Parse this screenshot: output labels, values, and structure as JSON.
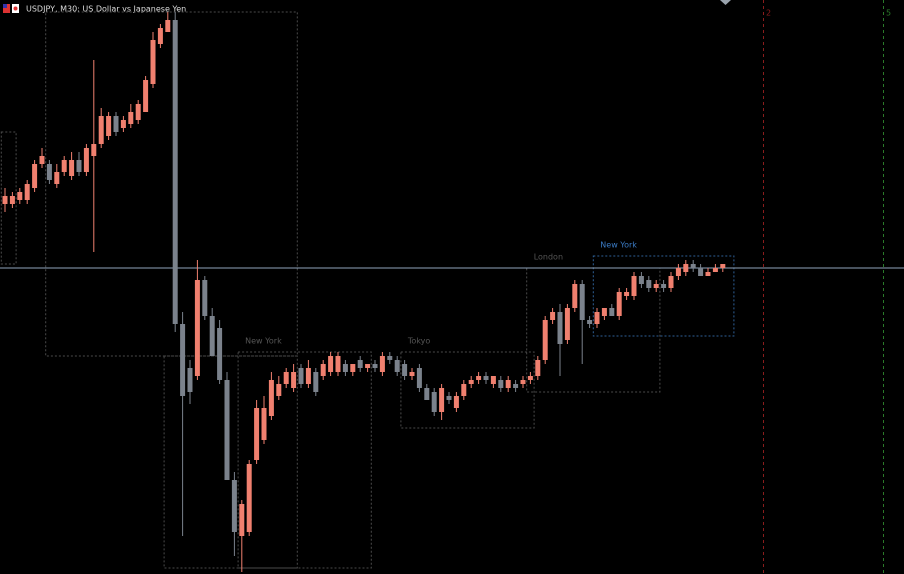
{
  "chart_data": {
    "type": "candlestick",
    "title": "USDJPY, M30:  US Dollar vs Japanese Yen",
    "ylim": [
      149.365,
      150.8
    ],
    "up_color": "#f0806f",
    "down_color": "#7b828c",
    "hline": 150.13,
    "hline_color": "#8fa4bd",
    "open": [
      150.29,
      150.29,
      150.3,
      150.3,
      150.33,
      150.39,
      150.39,
      150.34,
      150.37,
      150.36,
      150.4,
      150.37,
      150.41,
      150.44,
      150.46,
      150.51,
      150.48,
      150.49,
      150.5,
      150.52,
      150.59,
      150.69,
      150.72,
      150.75,
      149.99,
      149.88,
      149.86,
      150.1,
      150.01,
      149.98,
      149.85,
      149.6,
      149.46,
      149.47,
      149.65,
      149.7,
      149.76,
      149.81,
      149.84,
      149.83,
      149.88,
      149.84,
      149.87,
      149.86,
      149.87,
      149.87,
      149.89,
      149.87,
      149.9,
      149.88,
      149.89,
      149.87,
      149.91,
      149.9,
      149.89,
      149.86,
      149.88,
      149.83,
      149.82,
      149.77,
      149.81,
      149.78,
      149.81,
      149.84,
      149.85,
      149.86,
      149.84,
      149.85,
      149.83,
      149.84,
      149.84,
      149.85,
      149.86,
      149.9,
      150.0,
      150.02,
      149.95,
      150.03,
      150.09,
      150.0,
      149.99,
      150.01,
      150.03,
      150.01,
      150.06,
      150.06,
      150.11,
      150.1,
      150.08,
      150.09,
      150.08,
      150.11,
      150.12,
      150.14,
      150.13,
      150.11,
      150.12,
      150.13
    ],
    "high": [
      150.33,
      150.32,
      150.33,
      150.35,
      150.4,
      150.43,
      150.4,
      150.39,
      150.41,
      150.42,
      150.42,
      150.44,
      150.65,
      150.53,
      150.52,
      150.52,
      150.51,
      150.54,
      150.55,
      150.61,
      150.72,
      150.74,
      150.77,
      150.77,
      150.02,
      149.9,
      150.15,
      150.11,
      150.03,
      150.0,
      149.87,
      149.62,
      149.55,
      149.65,
      149.8,
      149.81,
      149.87,
      149.86,
      149.88,
      149.89,
      149.89,
      149.9,
      149.88,
      149.9,
      149.92,
      149.92,
      149.9,
      149.89,
      149.91,
      149.89,
      149.9,
      149.92,
      149.92,
      149.91,
      149.9,
      149.88,
      149.89,
      149.84,
      149.83,
      149.84,
      149.82,
      149.82,
      149.85,
      149.86,
      149.87,
      149.87,
      149.86,
      149.86,
      149.86,
      149.85,
      149.86,
      149.87,
      149.91,
      150.01,
      150.03,
      150.04,
      150.04,
      150.1,
      150.1,
      150.01,
      150.03,
      150.03,
      150.04,
      150.08,
      150.08,
      150.12,
      150.12,
      150.11,
      150.1,
      150.1,
      150.12,
      150.14,
      150.15,
      150.15,
      150.14,
      150.13,
      150.14,
      150.14
    ],
    "low": [
      150.27,
      150.28,
      150.29,
      150.29,
      150.32,
      150.38,
      150.34,
      150.33,
      150.36,
      150.35,
      150.36,
      150.36,
      150.17,
      150.43,
      150.45,
      150.46,
      150.47,
      150.48,
      150.49,
      150.52,
      150.58,
      150.68,
      150.72,
      149.97,
      149.46,
      149.79,
      149.85,
      150.0,
      149.91,
      149.84,
      149.6,
      149.41,
      149.37,
      149.46,
      149.64,
      149.69,
      149.75,
      149.8,
      149.83,
      149.82,
      149.83,
      149.83,
      149.81,
      149.85,
      149.86,
      149.86,
      149.86,
      149.86,
      149.87,
      149.87,
      149.87,
      149.86,
      149.89,
      149.86,
      149.85,
      149.85,
      149.82,
      149.8,
      149.76,
      149.75,
      149.79,
      149.77,
      149.8,
      149.83,
      149.84,
      149.84,
      149.83,
      149.82,
      149.82,
      149.82,
      149.83,
      149.84,
      149.85,
      149.89,
      149.99,
      149.86,
      149.94,
      150.02,
      149.89,
      149.98,
      149.98,
      150.0,
      150.01,
      150.0,
      150.05,
      150.05,
      150.08,
      150.07,
      150.07,
      150.07,
      150.07,
      150.1,
      150.11,
      150.12,
      150.11,
      150.11,
      150.12,
      150.12
    ],
    "close": [
      150.31,
      150.31,
      150.32,
      150.34,
      150.39,
      150.41,
      150.35,
      150.37,
      150.4,
      150.4,
      150.37,
      150.43,
      150.44,
      150.51,
      150.51,
      150.47,
      150.5,
      150.52,
      150.54,
      150.6,
      150.7,
      150.73,
      150.75,
      149.99,
      149.81,
      149.82,
      150.1,
      150.01,
      149.91,
      149.85,
      149.6,
      149.47,
      149.54,
      149.64,
      149.78,
      149.78,
      149.85,
      149.84,
      149.87,
      149.87,
      149.84,
      149.88,
      149.82,
      149.89,
      149.91,
      149.91,
      149.87,
      149.89,
      149.88,
      149.89,
      149.88,
      149.91,
      149.9,
      149.87,
      149.86,
      149.87,
      149.83,
      149.8,
      149.77,
      149.83,
      149.8,
      149.81,
      149.84,
      149.85,
      149.86,
      149.85,
      149.86,
      149.83,
      149.85,
      149.83,
      149.85,
      149.86,
      149.9,
      150.0,
      150.02,
      149.94,
      150.03,
      150.09,
      150.0,
      149.99,
      150.02,
      150.03,
      150.01,
      150.07,
      150.07,
      150.11,
      150.09,
      150.08,
      150.09,
      150.08,
      150.11,
      150.13,
      150.14,
      150.13,
      150.11,
      150.12,
      150.13,
      150.14
    ],
    "sessions": [
      {
        "start": 0,
        "end": 1,
        "high": 150.47,
        "low": 150.14,
        "color": "#4a4a4a"
      },
      {
        "start": 6,
        "end": 39,
        "high": 150.77,
        "low": 149.91,
        "color": "#4a4a4a"
      },
      {
        "start": 22,
        "end": 39,
        "high": 149.91,
        "low": 149.38,
        "color": "#4a4a4a"
      },
      {
        "label": "New York",
        "start": 32,
        "end": 49,
        "high": 149.92,
        "low": 149.38,
        "color": "#4a4a4a"
      },
      {
        "label": "Tokyo",
        "start": 54,
        "end": 71,
        "high": 149.92,
        "low": 149.73,
        "color": "#4a4a4a"
      },
      {
        "label": "London",
        "start": 71,
        "end": 88,
        "high": 150.13,
        "low": 149.82,
        "color": "#4a4a4a"
      },
      {
        "label": "New York",
        "start": 80,
        "end": 98,
        "high": 150.16,
        "low": 149.96,
        "color": "#2e5f96"
      }
    ],
    "markers": [
      {
        "label": "2",
        "color": "#8b1c1c"
      },
      {
        "label": "5",
        "color": "#2a7a2a"
      }
    ]
  }
}
